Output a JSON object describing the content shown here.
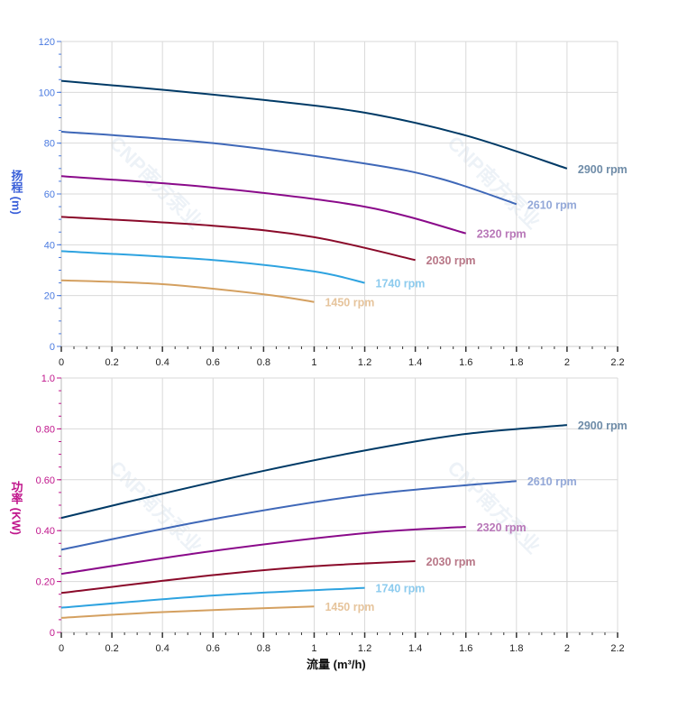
{
  "watermark": "CNP南方泵业",
  "chart_data": [
    {
      "type": "line",
      "ylabel": "扬程 (m)",
      "xlim": [
        0,
        2.2
      ],
      "ylim": [
        0,
        120
      ],
      "x_ticks": [
        "0",
        "0.2",
        "0.4",
        "0.6",
        "0.8",
        "1",
        "1.2",
        "1.4",
        "1.6",
        "1.8",
        "2",
        "2.2"
      ],
      "y_ticks": [
        "0",
        "20",
        "40",
        "60",
        "80",
        "100",
        "120"
      ],
      "grid": true,
      "axis_color": "#4a7ae0",
      "series": [
        {
          "name": "2900 rpm",
          "color": "#003a66",
          "label_color": "#6f8ca8",
          "x": [
            0,
            0.4,
            0.8,
            1.2,
            1.6,
            2.0
          ],
          "y": [
            104.5,
            101,
            97,
            92,
            83,
            70
          ]
        },
        {
          "name": "2610 rpm",
          "color": "#3f68b8",
          "label_color": "#93a8d8",
          "x": [
            0,
            0.6,
            1.2,
            1.5,
            1.8
          ],
          "y": [
            84.5,
            80,
            72,
            66,
            56
          ]
        },
        {
          "name": "2320 rpm",
          "color": "#8a0a8a",
          "label_color": "#b877b8",
          "x": [
            0,
            0.6,
            1.2,
            1.6
          ],
          "y": [
            67,
            62.5,
            55,
            44.5
          ]
        },
        {
          "name": "2030 rpm",
          "color": "#8a0a2a",
          "label_color": "#b87787",
          "x": [
            0,
            0.6,
            1.0,
            1.4
          ],
          "y": [
            51,
            47.5,
            43,
            34
          ]
        },
        {
          "name": "1740 rpm",
          "color": "#2ea3e0",
          "label_color": "#8ccbee",
          "x": [
            0,
            0.6,
            1.0,
            1.2
          ],
          "y": [
            37.5,
            34,
            29.5,
            25
          ]
        },
        {
          "name": "1450 rpm",
          "color": "#d4a060",
          "label_color": "#e6c49c",
          "x": [
            0,
            0.4,
            0.8,
            1.0
          ],
          "y": [
            26,
            24.5,
            20.5,
            17.5
          ]
        }
      ]
    },
    {
      "type": "line",
      "xlabel": "流量 (m³/h)",
      "ylabel": "功率 (KW)",
      "xlim": [
        0,
        2.2
      ],
      "ylim": [
        0,
        1.0
      ],
      "x_ticks": [
        "0",
        "0.2",
        "0.4",
        "0.6",
        "0.8",
        "1",
        "1.2",
        "1.4",
        "1.6",
        "1.8",
        "2",
        "2.2"
      ],
      "y_ticks": [
        "0",
        "0.20",
        "0.40",
        "0.60",
        "0.80",
        "1.0"
      ],
      "grid": true,
      "axis_color": "#c0168c",
      "series": [
        {
          "name": "2900 rpm",
          "color": "#003a66",
          "label_color": "#6f8ca8",
          "x": [
            0,
            0.4,
            0.8,
            1.2,
            1.6,
            2.0
          ],
          "y": [
            0.45,
            0.545,
            0.635,
            0.715,
            0.78,
            0.815
          ]
        },
        {
          "name": "2610 rpm",
          "color": "#3f68b8",
          "label_color": "#93a8d8",
          "x": [
            0,
            0.6,
            1.2,
            1.8
          ],
          "y": [
            0.325,
            0.445,
            0.54,
            0.595
          ]
        },
        {
          "name": "2320 rpm",
          "color": "#8a0a8a",
          "label_color": "#b877b8",
          "x": [
            0,
            0.6,
            1.2,
            1.6
          ],
          "y": [
            0.23,
            0.32,
            0.39,
            0.415
          ]
        },
        {
          "name": "2030 rpm",
          "color": "#8a0a2a",
          "label_color": "#b87787",
          "x": [
            0,
            0.6,
            1.0,
            1.4
          ],
          "y": [
            0.155,
            0.225,
            0.26,
            0.28
          ]
        },
        {
          "name": "1740 rpm",
          "color": "#2ea3e0",
          "label_color": "#8ccbee",
          "x": [
            0,
            0.6,
            1.2
          ],
          "y": [
            0.097,
            0.145,
            0.175
          ]
        },
        {
          "name": "1450 rpm",
          "color": "#d4a060",
          "label_color": "#e6c49c",
          "x": [
            0,
            0.4,
            1.0
          ],
          "y": [
            0.057,
            0.08,
            0.102
          ]
        }
      ]
    }
  ]
}
